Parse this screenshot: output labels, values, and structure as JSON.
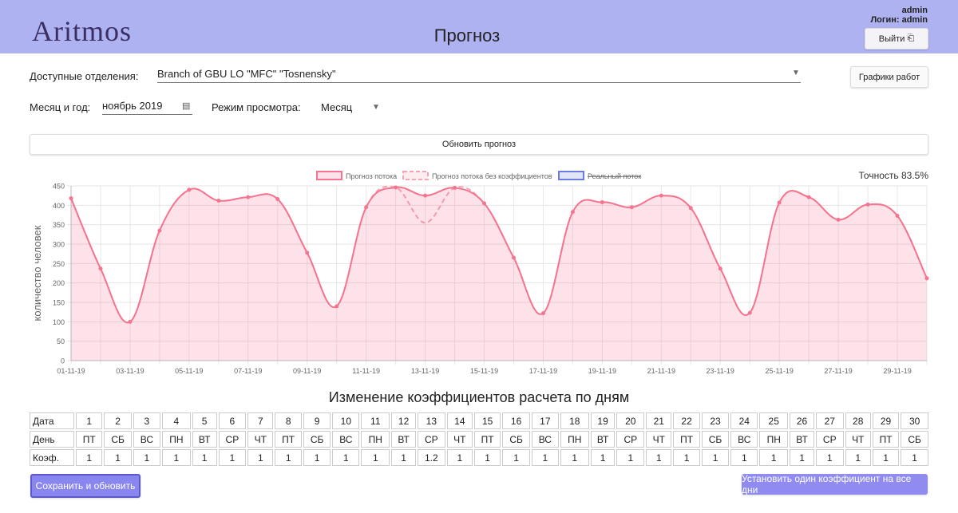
{
  "header": {
    "logo": "Aritmos",
    "title": "Прогноз",
    "user": "admin",
    "login": "Логин: admin",
    "logout": "Выйти"
  },
  "form": {
    "branch_label": "Доступные отделения:",
    "branch": "Branch of GBU LO \"MFC\" \"Tosnensky\"",
    "schedules_button": "Графики работ",
    "month_label": "Месяц и год:",
    "month": "ноябрь 2019",
    "mode_label": "Режим просмотра:",
    "mode": "Месяц",
    "refresh_button": "Обновить прогноз"
  },
  "chart_data": {
    "type": "line",
    "ylabel": "количество человек",
    "accuracy": "Точность 83.5%",
    "categories": [
      "01-11-19",
      null,
      "03-11-19",
      null,
      "05-11-19",
      null,
      "07-11-19",
      null,
      "09-11-19",
      null,
      "11-11-19",
      null,
      "13-11-19",
      null,
      "15-11-19",
      null,
      "17-11-19",
      null,
      "19-11-19",
      null,
      "21-11-19",
      null,
      "23-11-19",
      null,
      "25-11-19",
      null,
      "27-11-19",
      null,
      "29-11-19",
      null
    ],
    "series": [
      {
        "name": "Прогноз потока",
        "color": "#f5748f",
        "fill": true,
        "values": [
          418,
          237,
          100,
          335,
          440,
          412,
          421,
          416,
          278,
          140,
          395,
          446,
          425,
          445,
          405,
          265,
          122,
          383,
          408,
          395,
          425,
          393,
          237,
          123,
          407,
          421,
          363,
          402,
          373,
          212
        ]
      },
      {
        "name": "Прогноз потока без коэффициентов",
        "color": "#f7a3b3",
        "dashed": true,
        "values": [
          418,
          237,
          100,
          335,
          440,
          412,
          421,
          416,
          278,
          140,
          395,
          446,
          355,
          445,
          405,
          265,
          122,
          383,
          408,
          395,
          425,
          393,
          237,
          123,
          407,
          421,
          363,
          402,
          373,
          212
        ]
      },
      {
        "name": "Реальный поток",
        "color": "#6b7be0",
        "hidden": true,
        "values": [
          null,
          null,
          null,
          null,
          null,
          null,
          null,
          null,
          null,
          null,
          null,
          null,
          null,
          null,
          null,
          null,
          null,
          null,
          null,
          null,
          null,
          null,
          null,
          null,
          null,
          null,
          null,
          null,
          null,
          null
        ]
      }
    ],
    "ylim": [
      0,
      450
    ],
    "yticks": [
      0,
      50,
      100,
      150,
      200,
      250,
      300,
      350,
      400,
      450
    ],
    "grid": true
  },
  "table": {
    "title": "Изменение коэффициентов расчета по дням",
    "rows": [
      [
        "Дата",
        1,
        2,
        3,
        4,
        5,
        6,
        7,
        8,
        9,
        10,
        11,
        12,
        13,
        14,
        15,
        16,
        17,
        18,
        19,
        20,
        21,
        22,
        23,
        24,
        25,
        26,
        27,
        28,
        29,
        30
      ],
      [
        "День",
        "ПТ",
        "СБ",
        "ВС",
        "ПН",
        "ВТ",
        "СР",
        "ЧТ",
        "ПТ",
        "СБ",
        "ВС",
        "ПН",
        "ВТ",
        "СР",
        "ЧТ",
        "ПТ",
        "СБ",
        "ВС",
        "ПН",
        "ВТ",
        "СР",
        "ЧТ",
        "ПТ",
        "СБ",
        "ВС",
        "ПН",
        "ВТ",
        "СР",
        "ЧТ",
        "ПТ",
        "СБ"
      ],
      [
        "Коэф.",
        1,
        1,
        1,
        1,
        1,
        1,
        1,
        1,
        1,
        1,
        1,
        1,
        1.2,
        1,
        1,
        1,
        1,
        1,
        1,
        1,
        1,
        1,
        1,
        1,
        1,
        1,
        1,
        1,
        1,
        1
      ]
    ]
  },
  "footer": {
    "save_button": "Сохранить и обновить",
    "set_all_button": "Установить один коэффициент на все дни"
  }
}
